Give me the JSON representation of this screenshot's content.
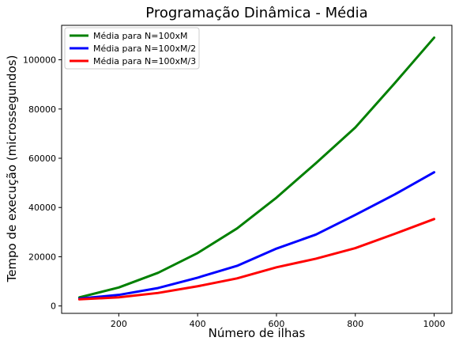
{
  "chart_data": {
    "type": "line",
    "title": "Programação Dinâmica - Média",
    "xlabel": "Número de ilhas",
    "ylabel": "Tempo de execução (microssegundos)",
    "xlim": [
      55,
      1045
    ],
    "ylim": [
      -3000,
      114000
    ],
    "xticks": [
      200,
      400,
      600,
      800,
      1000
    ],
    "yticks": [
      0,
      20000,
      40000,
      60000,
      80000,
      100000
    ],
    "legend_position": "top-left",
    "grid": false,
    "x": [
      100,
      200,
      300,
      400,
      500,
      600,
      700,
      800,
      900,
      1000
    ],
    "series": [
      {
        "name": "Média para N=100xM",
        "color": "#008000",
        "values": [
          3500,
          7500,
          13500,
          21500,
          31500,
          44000,
          58000,
          72500,
          90500,
          109000
        ]
      },
      {
        "name": "Média para N=100xM/2",
        "color": "#0000ff",
        "values": [
          3000,
          4500,
          7300,
          11500,
          16300,
          23300,
          29000,
          37000,
          45300,
          54300
        ]
      },
      {
        "name": "Média para N=100xM/3",
        "color": "#ff0000",
        "values": [
          2700,
          3500,
          5300,
          8000,
          11200,
          15700,
          19200,
          23500,
          29300,
          35300
        ]
      }
    ]
  }
}
